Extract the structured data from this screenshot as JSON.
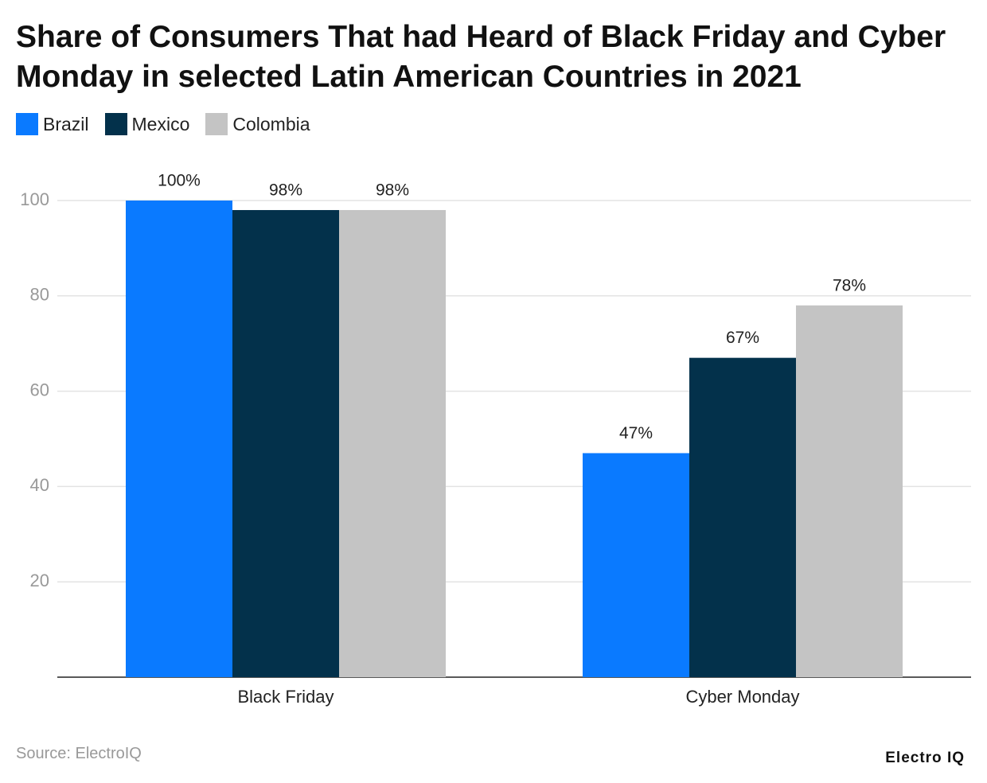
{
  "chart_data": {
    "type": "bar",
    "title": "Share of Consumers That had Heard of Black Friday and Cyber Monday in selected Latin American Countries in 2021",
    "categories": [
      "Black Friday",
      "Cyber Monday"
    ],
    "series": [
      {
        "name": "Brazil",
        "color": "#0a7aff",
        "values": [
          100,
          47
        ],
        "value_labels": [
          "100%",
          "47%"
        ]
      },
      {
        "name": "Mexico",
        "color": "#03314b",
        "values": [
          98,
          67
        ],
        "value_labels": [
          "98%",
          "67%"
        ]
      },
      {
        "name": "Colombia",
        "color": "#c4c4c4",
        "values": [
          98,
          78
        ],
        "value_labels": [
          "98%",
          "78%"
        ]
      }
    ],
    "ylim": [
      0,
      100
    ],
    "yticks": [
      20,
      40,
      60,
      80,
      100
    ],
    "grid": true,
    "source": "Source: ElectroIQ",
    "brand": "Electro IQ"
  }
}
